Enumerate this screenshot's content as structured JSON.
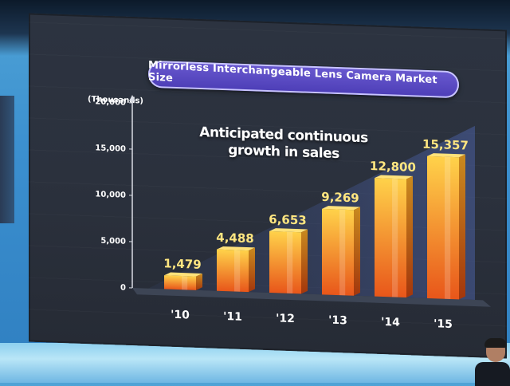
{
  "chart_data": {
    "type": "bar",
    "title": "Mirrorless Interchangeable Lens Camera Market Size",
    "unit_label": "(Thousands)",
    "annotation_lines": [
      "Anticipated continuous",
      "growth in sales"
    ],
    "categories": [
      "'10",
      "'11",
      "'12",
      "'13",
      "'14",
      "'15"
    ],
    "values": [
      1479,
      4488,
      6653,
      9269,
      12800,
      15357
    ],
    "value_labels": [
      "1,479",
      "4,488",
      "6,653",
      "9,269",
      "12,800",
      "15,357"
    ],
    "yticks": [
      0,
      5000,
      10000,
      15000,
      20000
    ],
    "ytick_labels": [
      "0",
      "5,000",
      "10,000",
      "15,000",
      "20,000"
    ],
    "ylim": [
      0,
      20000
    ],
    "grid": false,
    "colors": {
      "bar_light": "#ffd24a",
      "bar_dark": "#e8561a",
      "data_label": "#ffe680",
      "title_pill": "#5546c4"
    }
  }
}
